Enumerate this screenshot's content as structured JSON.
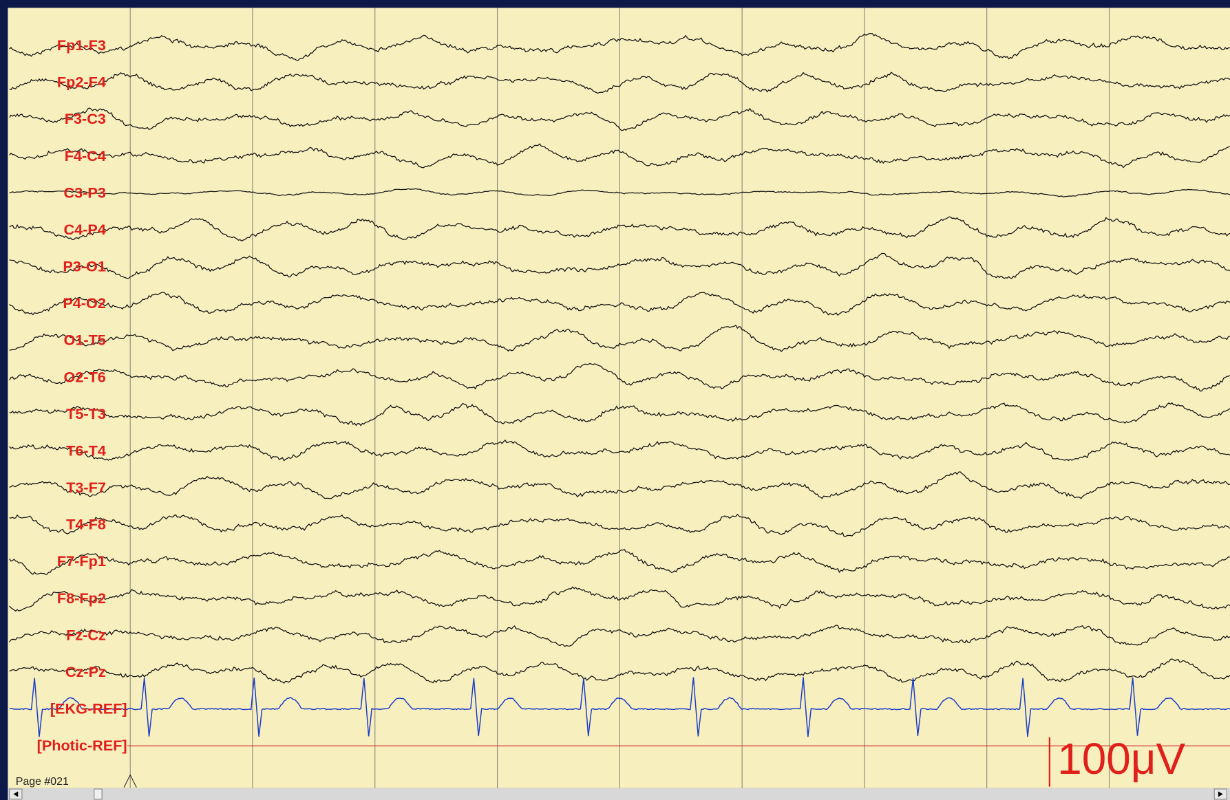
{
  "channels": [
    "Fp1-F3",
    "Fp2-F4",
    "F3-C3",
    "F4-C4",
    "C3-P3",
    "C4-P4",
    "P3-O1",
    "P4-O2",
    "O1-T5",
    "O2-T6",
    "T5-T3",
    "T6-T4",
    "T3-F7",
    "T4-F8",
    "F7-Fp1",
    "F8-Fp2",
    "Fz-Cz",
    "Cz-Pz",
    "[EKG-REF]",
    "[Photic-REF]"
  ],
  "page_label": "Page #021",
  "scale_label": "100μV"
}
